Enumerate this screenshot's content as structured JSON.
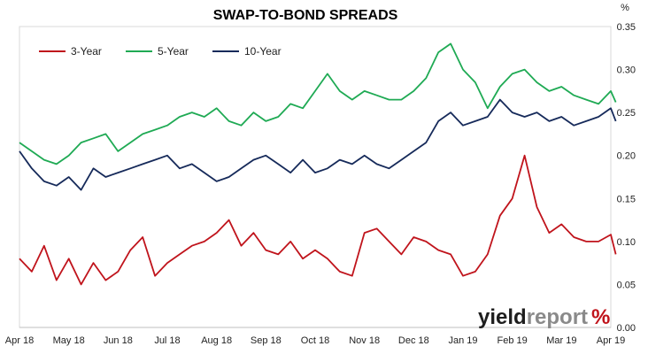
{
  "chart_data": {
    "type": "line",
    "title": "SWAP-TO-BOND SPREADS",
    "unit_label": "%",
    "x_tick_labels": [
      "Apr 18",
      "May 18",
      "Jun 18",
      "Jul 18",
      "Aug 18",
      "Sep 18",
      "Oct 18",
      "Nov 18",
      "Dec 18",
      "Jan 19",
      "Feb 19",
      "Mar 19",
      "Apr 19"
    ],
    "y_tick_labels": [
      "0.00",
      "0.05",
      "0.10",
      "0.15",
      "0.20",
      "0.25",
      "0.30",
      "0.35"
    ],
    "ylim": [
      0,
      0.35
    ],
    "grid": false,
    "legend_position": "top-left",
    "series": [
      {
        "name": "3-Year",
        "color": "#c0141c",
        "x": [
          0,
          0.25,
          0.5,
          0.75,
          1,
          1.25,
          1.5,
          1.75,
          2,
          2.25,
          2.5,
          2.75,
          3,
          3.25,
          3.5,
          3.75,
          4,
          4.25,
          4.5,
          4.75,
          5,
          5.25,
          5.5,
          5.75,
          6,
          6.25,
          6.5,
          6.75,
          7,
          7.25,
          7.5,
          7.75,
          8,
          8.25,
          8.5,
          8.75,
          9,
          9.25,
          9.5,
          9.75,
          10,
          10.25,
          10.5,
          10.75,
          11,
          11.25,
          11.5,
          11.75,
          12,
          12.1
        ],
        "values": [
          0.08,
          0.065,
          0.095,
          0.055,
          0.08,
          0.05,
          0.075,
          0.055,
          0.065,
          0.09,
          0.105,
          0.06,
          0.075,
          0.085,
          0.095,
          0.1,
          0.11,
          0.125,
          0.095,
          0.11,
          0.09,
          0.085,
          0.1,
          0.08,
          0.09,
          0.08,
          0.065,
          0.06,
          0.11,
          0.115,
          0.1,
          0.085,
          0.105,
          0.1,
          0.09,
          0.085,
          0.06,
          0.065,
          0.085,
          0.13,
          0.15,
          0.2,
          0.14,
          0.11,
          0.12,
          0.105,
          0.1,
          0.1,
          0.108,
          0.085
        ]
      },
      {
        "name": "5-Year",
        "color": "#1faa54",
        "x": [
          0,
          0.25,
          0.5,
          0.75,
          1,
          1.25,
          1.5,
          1.75,
          2,
          2.25,
          2.5,
          2.75,
          3,
          3.25,
          3.5,
          3.75,
          4,
          4.25,
          4.5,
          4.75,
          5,
          5.25,
          5.5,
          5.75,
          6,
          6.25,
          6.5,
          6.75,
          7,
          7.25,
          7.5,
          7.75,
          8,
          8.25,
          8.5,
          8.75,
          9,
          9.25,
          9.5,
          9.75,
          10,
          10.25,
          10.5,
          10.75,
          11,
          11.25,
          11.5,
          11.75,
          12,
          12.1
        ],
        "values": [
          0.215,
          0.205,
          0.195,
          0.19,
          0.2,
          0.215,
          0.22,
          0.225,
          0.205,
          0.215,
          0.225,
          0.23,
          0.235,
          0.245,
          0.25,
          0.245,
          0.255,
          0.24,
          0.235,
          0.25,
          0.24,
          0.245,
          0.26,
          0.255,
          0.275,
          0.295,
          0.275,
          0.265,
          0.275,
          0.27,
          0.265,
          0.265,
          0.275,
          0.29,
          0.32,
          0.33,
          0.3,
          0.285,
          0.255,
          0.28,
          0.295,
          0.3,
          0.285,
          0.275,
          0.28,
          0.27,
          0.265,
          0.26,
          0.275,
          0.262
        ]
      },
      {
        "name": "10-Year",
        "color": "#162a5a",
        "x": [
          0,
          0.25,
          0.5,
          0.75,
          1,
          1.25,
          1.5,
          1.75,
          2,
          2.25,
          2.5,
          2.75,
          3,
          3.25,
          3.5,
          3.75,
          4,
          4.25,
          4.5,
          4.75,
          5,
          5.25,
          5.5,
          5.75,
          6,
          6.25,
          6.5,
          6.75,
          7,
          7.25,
          7.5,
          7.75,
          8,
          8.25,
          8.5,
          8.75,
          9,
          9.25,
          9.5,
          9.75,
          10,
          10.25,
          10.5,
          10.75,
          11,
          11.25,
          11.5,
          11.75,
          12,
          12.1
        ],
        "values": [
          0.205,
          0.185,
          0.17,
          0.165,
          0.175,
          0.16,
          0.185,
          0.175,
          0.18,
          0.185,
          0.19,
          0.195,
          0.2,
          0.185,
          0.19,
          0.18,
          0.17,
          0.175,
          0.185,
          0.195,
          0.2,
          0.19,
          0.18,
          0.195,
          0.18,
          0.185,
          0.195,
          0.19,
          0.2,
          0.19,
          0.185,
          0.195,
          0.205,
          0.215,
          0.24,
          0.25,
          0.235,
          0.24,
          0.245,
          0.265,
          0.25,
          0.245,
          0.25,
          0.24,
          0.245,
          0.235,
          0.24,
          0.245,
          0.255,
          0.24
        ]
      }
    ]
  },
  "logo": {
    "text_yield": "yield",
    "text_report": "report",
    "symbol": "%",
    "color_yield": "#1e1e1e",
    "color_report": "#8a8a8a",
    "color_symbol_red": "#c0141c",
    "color_symbol_green": "#1faa54"
  }
}
